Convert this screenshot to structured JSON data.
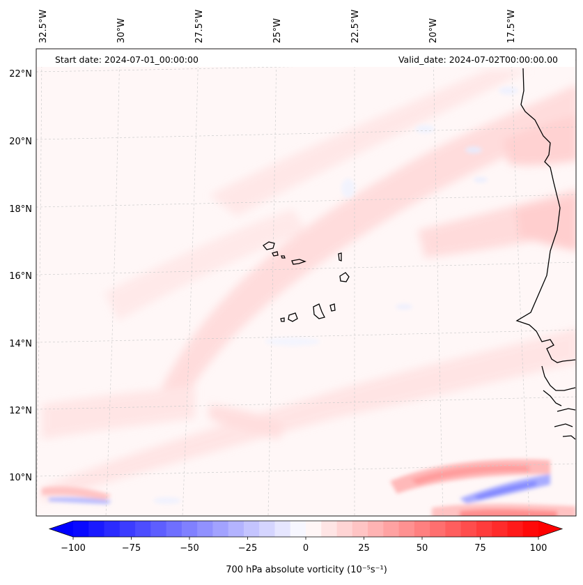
{
  "header": {
    "start_date": "Start date: 2024-07-01_00:00:00",
    "valid_date": "Valid_date: 2024-07-02T00:00:00.00"
  },
  "lon_labels": [
    "32.5°W",
    "30°W",
    "27.5°W",
    "25°W",
    "22.5°W",
    "20°W",
    "17.5°W"
  ],
  "lat_labels": [
    "22°N",
    "20°N",
    "18°N",
    "16°N",
    "14°N",
    "12°N",
    "10°N"
  ],
  "colorbar": {
    "ticks": [
      -100,
      -75,
      -50,
      -25,
      0,
      25,
      50,
      75,
      100
    ],
    "tick_labels": [
      "−100",
      "−75",
      "−50",
      "−25",
      "0",
      "25",
      "50",
      "75",
      "100"
    ],
    "range": [
      -100,
      100
    ],
    "levels": 30,
    "label": "700 hPa absolute vorticity (10⁻⁵s⁻¹)",
    "cmap": {
      "low": "#0000ff",
      "mid": "#ffffff",
      "high": "#ff0000"
    }
  },
  "colors": {
    "coastline": "#000000",
    "gridline": "#cccccc",
    "frame": "#000000"
  }
}
